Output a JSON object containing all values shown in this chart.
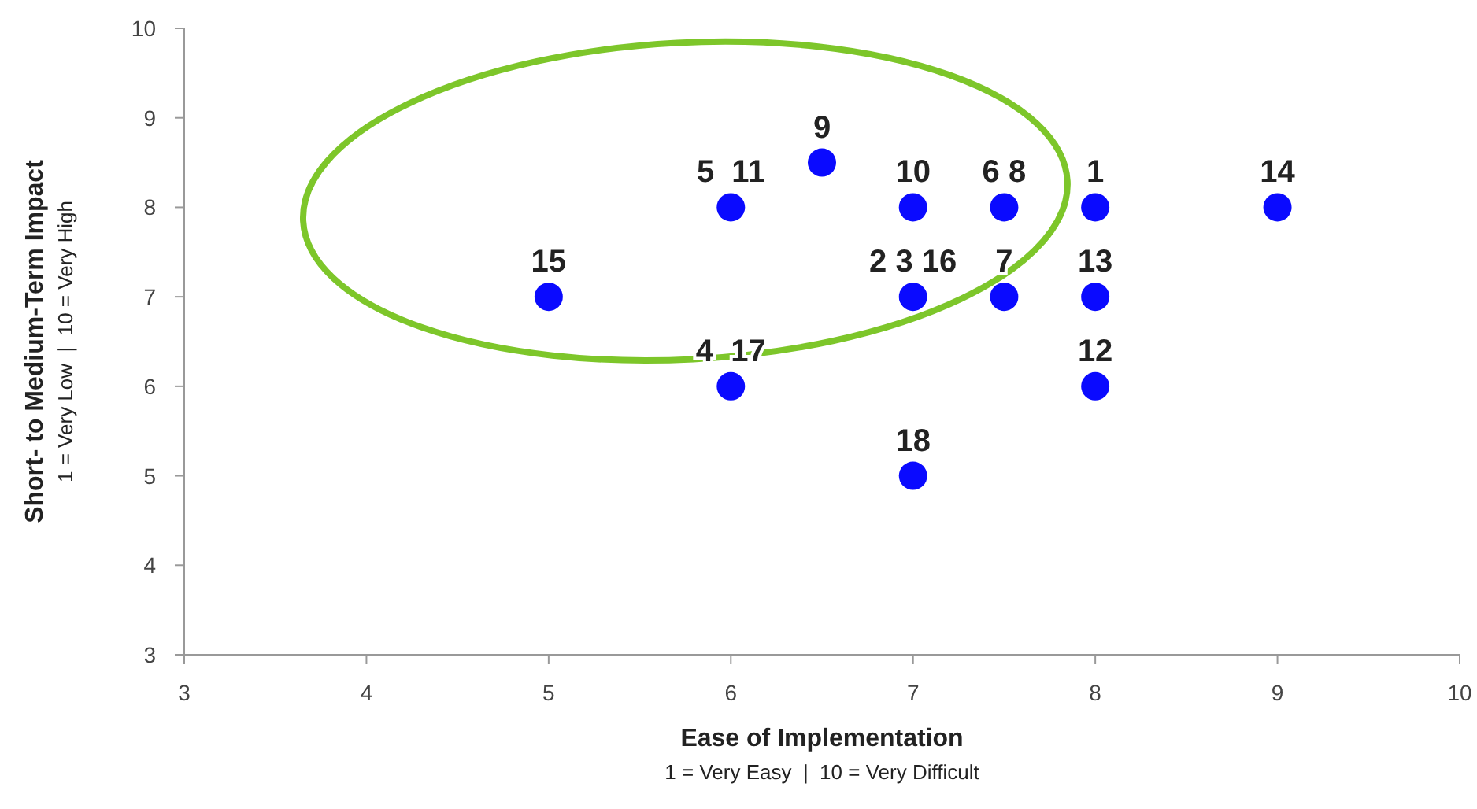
{
  "chart_data": {
    "type": "scatter",
    "xlabel": "Ease of Implementation\n1 = Very Easy  |  10 = Very Difficult",
    "ylabel": "Short- to Medium-Term Impact\n1 = Very Low  |  10 = Very High",
    "x": [
      5,
      6,
      6.5,
      7,
      7,
      6,
      7,
      7.5,
      7.5,
      8,
      8,
      8,
      9
    ],
    "values": [
      7,
      8,
      8.5,
      8,
      7,
      6,
      5,
      8,
      7,
      8,
      7,
      6,
      8
    ],
    "color": "#0a0aff",
    "marker": "circle",
    "grid": false,
    "xlim": [
      3,
      10
    ],
    "xticks": [
      3,
      4,
      5,
      6,
      7,
      8,
      9,
      10
    ],
    "ylim": [
      3,
      10
    ],
    "yticks": [
      3,
      4,
      5,
      6,
      7,
      8,
      9,
      10
    ],
    "annotations": [
      {
        "text": "15",
        "x": 5,
        "y": 7
      },
      {
        "text": "5  11",
        "x": 6,
        "y": 8
      },
      {
        "text": "9",
        "x": 6.5,
        "y": 8.5
      },
      {
        "text": "10",
        "x": 7,
        "y": 8
      },
      {
        "text": "2 3 16",
        "x": 7,
        "y": 7
      },
      {
        "text": "4  17",
        "x": 6,
        "y": 6
      },
      {
        "text": "18",
        "x": 7,
        "y": 5
      },
      {
        "text": "6 8",
        "x": 7.5,
        "y": 8
      },
      {
        "text": "7",
        "x": 7.5,
        "y": 7
      },
      {
        "text": "1",
        "x": 8,
        "y": 8
      },
      {
        "text": "13",
        "x": 8,
        "y": 7
      },
      {
        "text": "12",
        "x": 8,
        "y": 6
      },
      {
        "text": "14",
        "x": 9,
        "y": 8
      }
    ]
  }
}
